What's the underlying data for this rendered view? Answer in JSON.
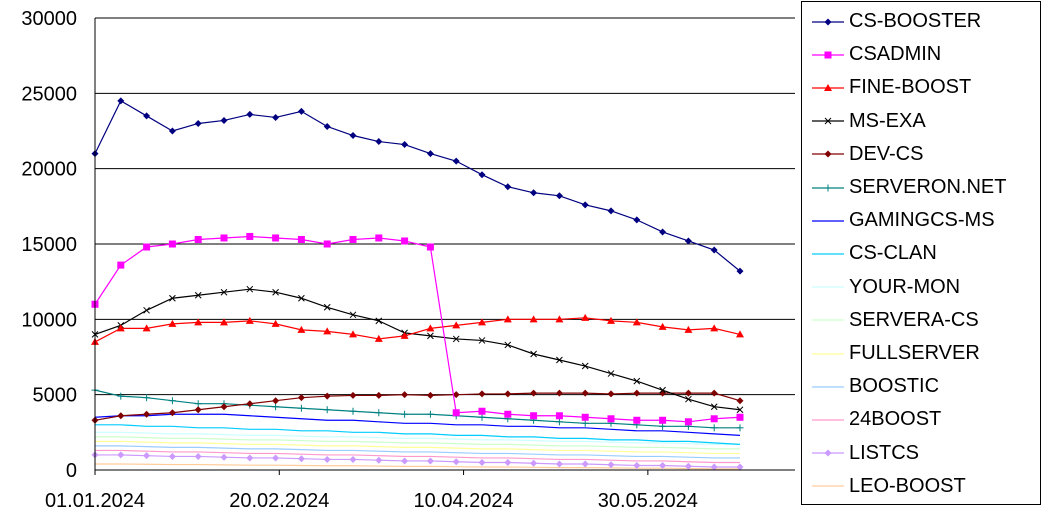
{
  "chart_data": {
    "type": "line",
    "title": "",
    "xlabel": "",
    "ylabel": "",
    "ylim": [
      0,
      30000
    ],
    "yticks": [
      "0",
      "5000",
      "10000",
      "15000",
      "20000",
      "25000",
      "30000"
    ],
    "xticks": [
      "01.01.2024",
      "20.02.2024",
      "10.04.2024",
      "30.05.2024"
    ],
    "x": [
      "01.01.2024",
      "08.01.2024",
      "15.01.2024",
      "22.01.2024",
      "29.01.2024",
      "05.02.2024",
      "12.02.2024",
      "19.02.2024",
      "26.02.2024",
      "04.03.2024",
      "11.03.2024",
      "18.03.2024",
      "25.03.2024",
      "01.04.2024",
      "08.04.2024",
      "15.04.2024",
      "22.04.2024",
      "29.04.2024",
      "06.05.2024",
      "13.05.2024",
      "20.05.2024",
      "27.05.2024",
      "03.06.2024",
      "10.06.2024",
      "17.06.2024",
      "24.06.2024"
    ],
    "legend_position": "right",
    "grid": "horizontal",
    "series": [
      {
        "name": "CS-BOOSTER",
        "color": "#000080",
        "marker": "diamond",
        "values": [
          21000,
          24500,
          23500,
          22500,
          23000,
          23200,
          23600,
          23400,
          23800,
          22800,
          22200,
          21800,
          21600,
          21000,
          20500,
          19600,
          18800,
          18400,
          18200,
          17600,
          17200,
          16600,
          15800,
          15200,
          14600,
          13200
        ]
      },
      {
        "name": "CSADMIN",
        "color": "#FF00FF",
        "marker": "square",
        "values": [
          11000,
          13600,
          14800,
          15000,
          15300,
          15400,
          15500,
          15400,
          15300,
          15000,
          15300,
          15400,
          15200,
          14800,
          3800,
          3900,
          3700,
          3600,
          3600,
          3500,
          3400,
          3300,
          3300,
          3200,
          3400,
          3500
        ]
      },
      {
        "name": "FINE-BOOST",
        "color": "#FF0000",
        "marker": "triangle",
        "values": [
          8500,
          9400,
          9400,
          9700,
          9800,
          9800,
          9900,
          9700,
          9300,
          9200,
          9000,
          8700,
          8900,
          9400,
          9600,
          9800,
          10000,
          10000,
          10000,
          10100,
          9900,
          9800,
          9500,
          9300,
          9400,
          9000
        ]
      },
      {
        "name": "MS-EXA",
        "color": "#000000",
        "marker": "x",
        "values": [
          9000,
          9600,
          10600,
          11400,
          11600,
          11800,
          12000,
          11800,
          11400,
          10800,
          10300,
          9900,
          9100,
          8900,
          8700,
          8600,
          8300,
          7700,
          7300,
          6900,
          6400,
          5900,
          5300,
          4700,
          4200,
          4000
        ]
      },
      {
        "name": "DEV-CS",
        "color": "#800000",
        "marker": "diamond",
        "values": [
          3300,
          3600,
          3700,
          3800,
          4000,
          4200,
          4400,
          4600,
          4800,
          4900,
          4950,
          4950,
          5000,
          4950,
          5000,
          5050,
          5050,
          5100,
          5100,
          5100,
          5050,
          5100,
          5100,
          5100,
          5100,
          4600
        ]
      },
      {
        "name": "SERVERON.NET",
        "color": "#008080",
        "marker": "plus",
        "values": [
          5300,
          4900,
          4800,
          4600,
          4400,
          4400,
          4300,
          4200,
          4100,
          4000,
          3900,
          3800,
          3700,
          3700,
          3600,
          3500,
          3400,
          3300,
          3200,
          3100,
          3100,
          3000,
          2900,
          2900,
          2800,
          2800
        ]
      },
      {
        "name": "GAMINGCS-MS",
        "color": "#0000FF",
        "marker": "none",
        "values": [
          3500,
          3600,
          3600,
          3700,
          3700,
          3700,
          3600,
          3500,
          3400,
          3300,
          3300,
          3200,
          3100,
          3100,
          3000,
          3000,
          2900,
          2900,
          2800,
          2800,
          2700,
          2600,
          2600,
          2500,
          2400,
          2300
        ]
      },
      {
        "name": "CS-CLAN",
        "color": "#00CCFF",
        "marker": "none",
        "values": [
          3000,
          3000,
          2900,
          2900,
          2800,
          2800,
          2700,
          2700,
          2600,
          2600,
          2500,
          2500,
          2400,
          2400,
          2300,
          2300,
          2200,
          2200,
          2100,
          2100,
          2000,
          2000,
          1900,
          1900,
          1800,
          1700
        ]
      },
      {
        "name": "YOUR-MON",
        "color": "#CCFFFF",
        "marker": "none",
        "values": [
          2500,
          2500,
          2450,
          2400,
          2400,
          2350,
          2300,
          2300,
          2250,
          2200,
          2200,
          2150,
          2100,
          2100,
          2050,
          2000,
          2000,
          1950,
          1900,
          1900,
          1850,
          1800,
          1800,
          1750,
          1700,
          1700
        ]
      },
      {
        "name": "SERVERA-CS",
        "color": "#CCFFCC",
        "marker": "none",
        "values": [
          2200,
          2200,
          2150,
          2100,
          2100,
          2050,
          2000,
          2000,
          1950,
          1900,
          1900,
          1850,
          1800,
          1800,
          1750,
          1700,
          1700,
          1650,
          1600,
          1600,
          1550,
          1500,
          1500,
          1450,
          1400,
          1400
        ]
      },
      {
        "name": "FULLSERVER",
        "color": "#FFFF99",
        "marker": "none",
        "values": [
          1900,
          1900,
          1850,
          1800,
          1800,
          1750,
          1700,
          1700,
          1650,
          1600,
          1600,
          1550,
          1500,
          1500,
          1450,
          1400,
          1400,
          1350,
          1300,
          1300,
          1250,
          1200,
          1200,
          1150,
          1100,
          1100
        ]
      },
      {
        "name": "BOOSTIC",
        "color": "#99CCFF",
        "marker": "none",
        "values": [
          1600,
          1600,
          1550,
          1500,
          1500,
          1450,
          1400,
          1400,
          1350,
          1300,
          1300,
          1250,
          1200,
          1200,
          1150,
          1100,
          1100,
          1050,
          1000,
          1000,
          950,
          900,
          900,
          850,
          800,
          800
        ]
      },
      {
        "name": "24BOOST",
        "color": "#FF99CC",
        "marker": "none",
        "values": [
          1300,
          1300,
          1250,
          1200,
          1200,
          1150,
          1100,
          1100,
          1050,
          1000,
          1000,
          950,
          900,
          900,
          850,
          800,
          800,
          750,
          700,
          700,
          650,
          600,
          600,
          550,
          500,
          500
        ]
      },
      {
        "name": "LISTCS",
        "color": "#CC99FF",
        "marker": "diamond",
        "values": [
          1000,
          1000,
          950,
          900,
          900,
          850,
          800,
          800,
          750,
          700,
          700,
          650,
          600,
          600,
          550,
          500,
          500,
          450,
          400,
          400,
          350,
          300,
          300,
          250,
          200,
          200
        ]
      },
      {
        "name": "LEO-BOOST",
        "color": "#FFCC99",
        "marker": "none",
        "values": [
          400,
          400,
          380,
          360,
          360,
          340,
          320,
          320,
          300,
          280,
          280,
          260,
          240,
          240,
          220,
          200,
          200,
          180,
          160,
          160,
          140,
          120,
          120,
          100,
          80,
          80
        ]
      }
    ]
  }
}
